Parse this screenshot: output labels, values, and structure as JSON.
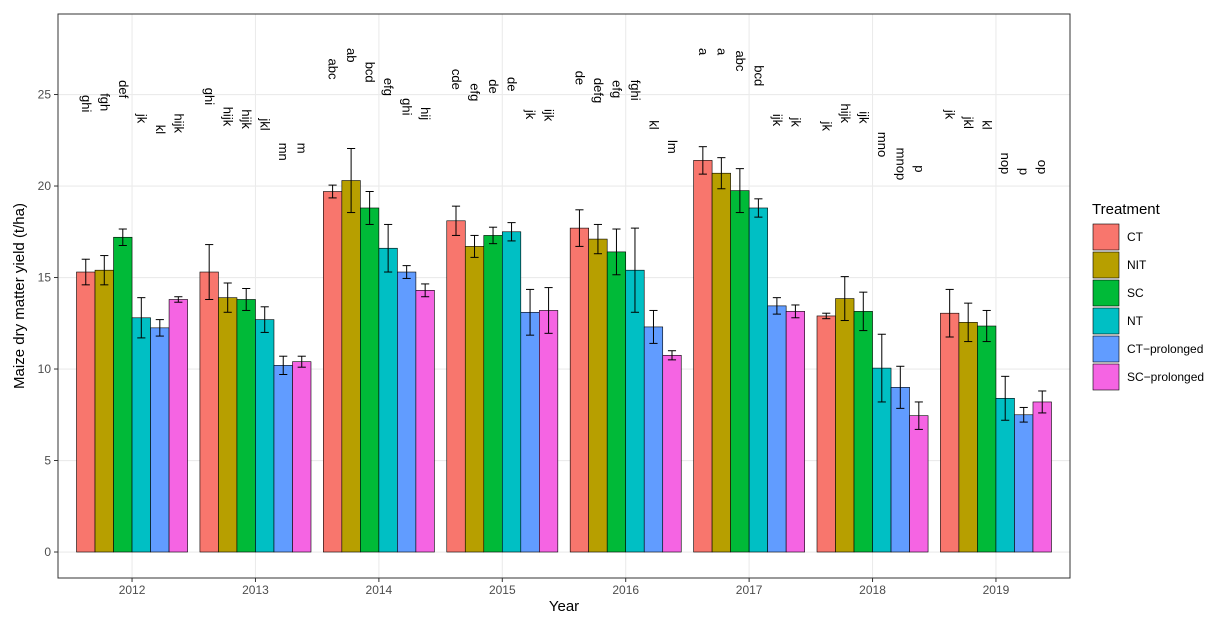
{
  "chart_data": {
    "type": "bar",
    "x_label": "Year",
    "y_label": "Maize dry matter yield (t/ha)",
    "legend_title": "Treatment",
    "legend_position": "right",
    "categories": [
      "2012",
      "2013",
      "2014",
      "2015",
      "2016",
      "2017",
      "2018",
      "2019"
    ],
    "ylim": [
      -1.42,
      29.4
    ],
    "yticks": [
      0,
      5,
      10,
      15,
      20,
      25
    ],
    "grid": true,
    "series": [
      {
        "name": "CT",
        "color": "#F8766D",
        "values": [
          15.3,
          15.3,
          19.7,
          18.1,
          17.7,
          21.4,
          12.9,
          13.05
        ],
        "errors": [
          0.7,
          1.5,
          0.35,
          0.8,
          1.0,
          0.75,
          0.15,
          1.3
        ],
        "letters": [
          "ghi",
          "ghi",
          "abc",
          "cde",
          "de",
          "a",
          "jk",
          "jk"
        ]
      },
      {
        "name": "NIT",
        "color": "#B79F00",
        "values": [
          15.4,
          13.9,
          20.3,
          16.7,
          17.1,
          20.7,
          13.85,
          12.55
        ],
        "errors": [
          0.8,
          0.8,
          1.75,
          0.6,
          0.8,
          0.85,
          1.2,
          1.05
        ],
        "letters": [
          "fgh",
          "hijk",
          "ab",
          "efg",
          "defg",
          "a",
          "hijk",
          "jkl"
        ]
      },
      {
        "name": "SC",
        "color": "#00BA38",
        "values": [
          17.2,
          13.8,
          18.8,
          17.3,
          16.4,
          19.75,
          13.15,
          12.35
        ],
        "errors": [
          0.45,
          0.6,
          0.9,
          0.45,
          1.25,
          1.2,
          1.05,
          0.85
        ],
        "letters": [
          "def",
          "hijk",
          "bcd",
          "de",
          "efg",
          "abc",
          "ijk",
          "kl"
        ]
      },
      {
        "name": "NT",
        "color": "#00BFC4",
        "values": [
          12.8,
          12.7,
          16.6,
          17.5,
          15.4,
          18.8,
          10.05,
          8.4
        ],
        "errors": [
          1.1,
          0.7,
          1.3,
          0.5,
          2.3,
          0.5,
          1.85,
          1.2
        ],
        "letters": [
          "jk",
          "jkl",
          "efg",
          "de",
          "fghi",
          "bcd",
          "mno",
          "nop"
        ]
      },
      {
        "name": "CT−prolonged",
        "color": "#619CFF",
        "values": [
          12.25,
          10.2,
          15.3,
          13.1,
          12.3,
          13.45,
          9.0,
          7.5
        ],
        "errors": [
          0.45,
          0.5,
          0.35,
          1.25,
          0.9,
          0.45,
          1.15,
          0.4
        ],
        "letters": [
          "kl",
          "mn",
          "ghi",
          "jk",
          "kl",
          "ijk",
          "mnop",
          "p"
        ]
      },
      {
        "name": "SC−prolonged",
        "color": "#F564E3",
        "values": [
          13.8,
          10.4,
          14.3,
          13.2,
          10.75,
          13.15,
          7.45,
          8.2
        ],
        "errors": [
          0.15,
          0.3,
          0.35,
          1.25,
          0.25,
          0.35,
          0.75,
          0.6
        ],
        "letters": [
          "hijk",
          "m",
          "hij",
          "ijk",
          "lm",
          "jk",
          "p",
          "op"
        ]
      }
    ]
  }
}
